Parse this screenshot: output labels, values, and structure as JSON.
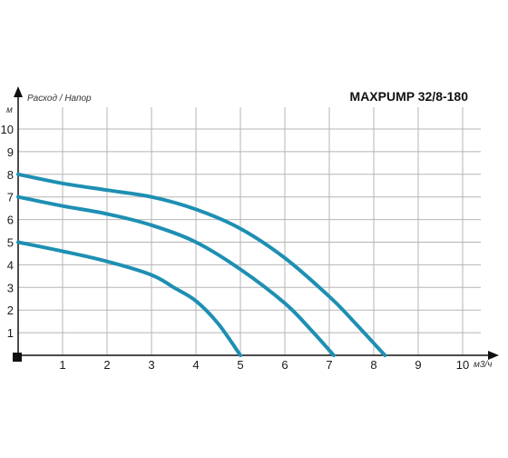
{
  "chart_data": {
    "type": "line",
    "title": "MAXPUMP 32/8-180",
    "subtitle": "Расход / Напор",
    "xlabel": "м3/ч",
    "ylabel": "м",
    "xlim": [
      0,
      10
    ],
    "ylim": [
      0,
      10
    ],
    "x_ticks": [
      "1",
      "2",
      "3",
      "4",
      "5",
      "6",
      "7",
      "8",
      "9",
      "10"
    ],
    "y_ticks": [
      "1",
      "2",
      "3",
      "4",
      "5",
      "6",
      "7",
      "8",
      "9",
      "10"
    ],
    "grid": true,
    "line_color": "#1e8fb3",
    "series": [
      {
        "points": [
          [
            0,
            8.0
          ],
          [
            1,
            7.6
          ],
          [
            2,
            7.3
          ],
          [
            3,
            7.0
          ],
          [
            4,
            6.45
          ],
          [
            5,
            5.6
          ],
          [
            6,
            4.3
          ],
          [
            7,
            2.6
          ],
          [
            7.5,
            1.6
          ],
          [
            8.25,
            0.0
          ]
        ]
      },
      {
        "points": [
          [
            0,
            7.0
          ],
          [
            1,
            6.6
          ],
          [
            2,
            6.25
          ],
          [
            3,
            5.75
          ],
          [
            4,
            5.0
          ],
          [
            5,
            3.8
          ],
          [
            6,
            2.3
          ],
          [
            6.6,
            1.1
          ],
          [
            7.1,
            0.0
          ]
        ]
      },
      {
        "points": [
          [
            0,
            5.0
          ],
          [
            1,
            4.6
          ],
          [
            2,
            4.15
          ],
          [
            3,
            3.55
          ],
          [
            3.5,
            3.0
          ],
          [
            4,
            2.4
          ],
          [
            4.5,
            1.4
          ],
          [
            5.0,
            0.0
          ]
        ]
      }
    ]
  }
}
